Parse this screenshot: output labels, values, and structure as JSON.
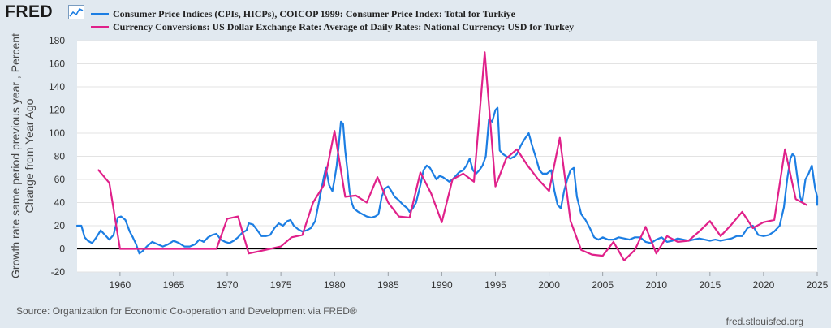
{
  "header": {
    "logo_text": "FRED",
    "logo_icon": "trend-line-icon"
  },
  "legend": [
    {
      "label": "Consumer Price Indices (CPIs, HICPs), COICOP 1999: Consumer Price Index: Total for Turkiye",
      "color": "#1c7ee3"
    },
    {
      "label": "Currency Conversions: US Dollar Exchange Rate: Average of Daily Rates: National Currency: USD for Turkey",
      "color": "#e0218a"
    }
  ],
  "footer": {
    "source": "Source: Organization for Economic Co-operation and Development via FRED®",
    "site": "fred.stlouisfed.org"
  },
  "chart_data": {
    "type": "line",
    "ylabel_lines": [
      "Growth rate same period previous year , Percent",
      "Change from Year Ago"
    ],
    "xlim": [
      1956,
      2025
    ],
    "ylim": [
      -20,
      180
    ],
    "yticks": [
      -20,
      0,
      20,
      40,
      60,
      80,
      100,
      120,
      140,
      160,
      180
    ],
    "xticks": [
      1960,
      1965,
      1970,
      1975,
      1980,
      1985,
      1990,
      1995,
      2000,
      2005,
      2010,
      2015,
      2020,
      2025
    ],
    "grid": true,
    "series": [
      {
        "name": "Consumer Price Indices (CPIs, HICPs), COICOP 1999: Consumer Price Index: Total for Turkiye",
        "color": "#1c7ee3",
        "points": [
          [
            1956,
            20
          ],
          [
            1956.4,
            20
          ],
          [
            1956.7,
            10
          ],
          [
            1957,
            7
          ],
          [
            1957.4,
            5
          ],
          [
            1957.8,
            10
          ],
          [
            1958.2,
            16
          ],
          [
            1958.6,
            12
          ],
          [
            1959,
            8
          ],
          [
            1959.4,
            12
          ],
          [
            1959.8,
            27
          ],
          [
            1960.1,
            28
          ],
          [
            1960.5,
            25
          ],
          [
            1960.9,
            15
          ],
          [
            1961.2,
            10
          ],
          [
            1961.5,
            4
          ],
          [
            1961.8,
            -4
          ],
          [
            1962.1,
            -2
          ],
          [
            1962.5,
            2
          ],
          [
            1963,
            6
          ],
          [
            1963.5,
            4
          ],
          [
            1964,
            2
          ],
          [
            1964.5,
            4
          ],
          [
            1965,
            7
          ],
          [
            1965.5,
            5
          ],
          [
            1966,
            2
          ],
          [
            1966.5,
            2
          ],
          [
            1967,
            4
          ],
          [
            1967.4,
            8
          ],
          [
            1967.8,
            6
          ],
          [
            1968.2,
            10
          ],
          [
            1968.6,
            12
          ],
          [
            1969,
            13
          ],
          [
            1969.4,
            8
          ],
          [
            1969.8,
            6
          ],
          [
            1970.2,
            5
          ],
          [
            1970.6,
            7
          ],
          [
            1971,
            10
          ],
          [
            1971.4,
            14
          ],
          [
            1971.8,
            16
          ],
          [
            1972,
            22
          ],
          [
            1972.4,
            21
          ],
          [
            1972.8,
            16
          ],
          [
            1973.2,
            11
          ],
          [
            1973.6,
            11
          ],
          [
            1974,
            12
          ],
          [
            1974.4,
            18
          ],
          [
            1974.8,
            22
          ],
          [
            1975.2,
            20
          ],
          [
            1975.6,
            24
          ],
          [
            1975.9,
            25
          ],
          [
            1976.2,
            20
          ],
          [
            1976.6,
            17
          ],
          [
            1977,
            15
          ],
          [
            1977.4,
            16
          ],
          [
            1977.8,
            18
          ],
          [
            1978.2,
            24
          ],
          [
            1978.6,
            43
          ],
          [
            1979,
            62
          ],
          [
            1979.2,
            70
          ],
          [
            1979.5,
            55
          ],
          [
            1979.8,
            50
          ],
          [
            1980,
            60
          ],
          [
            1980.2,
            72
          ],
          [
            1980.4,
            90
          ],
          [
            1980.6,
            110
          ],
          [
            1980.8,
            108
          ],
          [
            1981,
            85
          ],
          [
            1981.2,
            68
          ],
          [
            1981.4,
            50
          ],
          [
            1981.6,
            40
          ],
          [
            1981.8,
            35
          ],
          [
            1982.2,
            32
          ],
          [
            1982.6,
            30
          ],
          [
            1983,
            28
          ],
          [
            1983.4,
            27
          ],
          [
            1983.8,
            28
          ],
          [
            1984.1,
            30
          ],
          [
            1984.4,
            45
          ],
          [
            1984.7,
            52
          ],
          [
            1985,
            54
          ],
          [
            1985.3,
            50
          ],
          [
            1985.6,
            45
          ],
          [
            1986,
            42
          ],
          [
            1986.4,
            38
          ],
          [
            1986.8,
            35
          ],
          [
            1987,
            32
          ],
          [
            1987.3,
            35
          ],
          [
            1987.6,
            40
          ],
          [
            1988,
            55
          ],
          [
            1988.3,
            68
          ],
          [
            1988.6,
            72
          ],
          [
            1988.9,
            70
          ],
          [
            1989.2,
            65
          ],
          [
            1989.5,
            60
          ],
          [
            1989.8,
            63
          ],
          [
            1990.1,
            62
          ],
          [
            1990.4,
            60
          ],
          [
            1990.7,
            58
          ],
          [
            1991,
            60
          ],
          [
            1991.3,
            63
          ],
          [
            1991.6,
            66
          ],
          [
            1992,
            68
          ],
          [
            1992.3,
            72
          ],
          [
            1992.6,
            78
          ],
          [
            1992.9,
            68
          ],
          [
            1993.2,
            65
          ],
          [
            1993.5,
            68
          ],
          [
            1993.8,
            72
          ],
          [
            1994.1,
            80
          ],
          [
            1994.4,
            112
          ],
          [
            1994.7,
            110
          ],
          [
            1995,
            120
          ],
          [
            1995.2,
            122
          ],
          [
            1995.4,
            85
          ],
          [
            1995.7,
            82
          ],
          [
            1996,
            80
          ],
          [
            1996.4,
            78
          ],
          [
            1996.8,
            80
          ],
          [
            1997,
            82
          ],
          [
            1997.4,
            90
          ],
          [
            1997.8,
            96
          ],
          [
            1998.1,
            100
          ],
          [
            1998.4,
            90
          ],
          [
            1998.8,
            78
          ],
          [
            1999.1,
            68
          ],
          [
            1999.4,
            65
          ],
          [
            1999.8,
            65
          ],
          [
            2000.2,
            68
          ],
          [
            2000.5,
            50
          ],
          [
            2000.8,
            38
          ],
          [
            2001.1,
            35
          ],
          [
            2001.4,
            50
          ],
          [
            2001.7,
            60
          ],
          [
            2002,
            68
          ],
          [
            2002.3,
            70
          ],
          [
            2002.6,
            45
          ],
          [
            2003,
            30
          ],
          [
            2003.4,
            25
          ],
          [
            2003.8,
            18
          ],
          [
            2004.2,
            10
          ],
          [
            2004.6,
            8
          ],
          [
            2005,
            10
          ],
          [
            2005.5,
            8
          ],
          [
            2006,
            8
          ],
          [
            2006.5,
            10
          ],
          [
            2007,
            9
          ],
          [
            2007.5,
            8
          ],
          [
            2008,
            10
          ],
          [
            2008.5,
            10
          ],
          [
            2009,
            6
          ],
          [
            2009.5,
            5
          ],
          [
            2010,
            8
          ],
          [
            2010.5,
            10
          ],
          [
            2011,
            6
          ],
          [
            2011.5,
            7
          ],
          [
            2012,
            9
          ],
          [
            2012.5,
            8
          ],
          [
            2013,
            7
          ],
          [
            2013.5,
            8
          ],
          [
            2014,
            9
          ],
          [
            2014.5,
            8
          ],
          [
            2015,
            7
          ],
          [
            2015.5,
            8
          ],
          [
            2016,
            7
          ],
          [
            2016.5,
            8
          ],
          [
            2017,
            9
          ],
          [
            2017.5,
            11
          ],
          [
            2018,
            11
          ],
          [
            2018.5,
            18
          ],
          [
            2019,
            20
          ],
          [
            2019.5,
            12
          ],
          [
            2020,
            11
          ],
          [
            2020.5,
            12
          ],
          [
            2021,
            15
          ],
          [
            2021.5,
            20
          ],
          [
            2021.9,
            36
          ],
          [
            2022.2,
            60
          ],
          [
            2022.5,
            78
          ],
          [
            2022.7,
            82
          ],
          [
            2022.9,
            80
          ],
          [
            2023.1,
            65
          ],
          [
            2023.4,
            45
          ],
          [
            2023.6,
            40
          ],
          [
            2023.9,
            60
          ],
          [
            2024.2,
            65
          ],
          [
            2024.5,
            72
          ],
          [
            2024.8,
            52
          ],
          [
            2025,
            45
          ],
          [
            2025.2,
            38
          ]
        ]
      },
      {
        "name": "Currency Conversions: US Dollar Exchange Rate: Average of Daily Rates: National Currency: USD for Turkey",
        "color": "#e0218a",
        "points": [
          [
            1958,
            68
          ],
          [
            1959,
            57
          ],
          [
            1960,
            0
          ],
          [
            1961,
            0
          ],
          [
            1962,
            0
          ],
          [
            1963,
            0
          ],
          [
            1964,
            0
          ],
          [
            1965,
            0
          ],
          [
            1966,
            0
          ],
          [
            1967,
            0
          ],
          [
            1968,
            0
          ],
          [
            1969,
            0
          ],
          [
            1970,
            26
          ],
          [
            1971,
            28
          ],
          [
            1972,
            -4
          ],
          [
            1973,
            -2
          ],
          [
            1974,
            0
          ],
          [
            1975,
            2
          ],
          [
            1976,
            10
          ],
          [
            1977,
            12
          ],
          [
            1978,
            40
          ],
          [
            1979,
            55
          ],
          [
            1980,
            102
          ],
          [
            1981,
            45
          ],
          [
            1982,
            46
          ],
          [
            1983,
            40
          ],
          [
            1984,
            62
          ],
          [
            1985,
            40
          ],
          [
            1986,
            28
          ],
          [
            1987,
            27
          ],
          [
            1988,
            66
          ],
          [
            1989,
            48
          ],
          [
            1990,
            23
          ],
          [
            1991,
            60
          ],
          [
            1992,
            65
          ],
          [
            1993,
            58
          ],
          [
            1994,
            170
          ],
          [
            1995,
            54
          ],
          [
            1996,
            78
          ],
          [
            1997,
            86
          ],
          [
            1998,
            72
          ],
          [
            1999,
            60
          ],
          [
            2000,
            50
          ],
          [
            2001,
            96
          ],
          [
            2002,
            24
          ],
          [
            2003,
            -1
          ],
          [
            2004,
            -5
          ],
          [
            2005,
            -6
          ],
          [
            2006,
            6
          ],
          [
            2007,
            -10
          ],
          [
            2008,
            -1
          ],
          [
            2009,
            19
          ],
          [
            2010,
            -4
          ],
          [
            2011,
            11
          ],
          [
            2012,
            6
          ],
          [
            2013,
            7
          ],
          [
            2014,
            15
          ],
          [
            2015,
            24
          ],
          [
            2016,
            11
          ],
          [
            2017,
            21
          ],
          [
            2018,
            32
          ],
          [
            2019,
            18
          ],
          [
            2020,
            23
          ],
          [
            2021,
            25
          ],
          [
            2022,
            86
          ],
          [
            2023,
            43
          ],
          [
            2024,
            38
          ]
        ]
      }
    ]
  }
}
